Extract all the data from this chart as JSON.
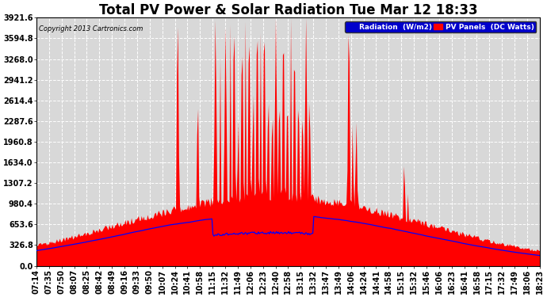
{
  "title": "Total PV Power & Solar Radiation Tue Mar 12 18:33",
  "copyright": "Copyright 2013 Cartronics.com",
  "legend_radiation": "Radiation  (W/m2)",
  "legend_pv": "PV Panels  (DC Watts)",
  "ymin": 0.0,
  "ymax": 3921.6,
  "yticks": [
    0.0,
    326.8,
    653.6,
    980.4,
    1307.2,
    1634.0,
    1960.8,
    2287.6,
    2614.4,
    2941.2,
    3268.0,
    3594.8,
    3921.6
  ],
  "bg_color": "#ffffff",
  "plot_bg_color": "#d8d8d8",
  "grid_color": "#ffffff",
  "pv_color": "#ff0000",
  "radiation_color": "#0000ff",
  "title_fontsize": 12,
  "tick_fontsize": 7,
  "xtick_labels": [
    "07:14",
    "07:35",
    "07:50",
    "08:07",
    "08:25",
    "08:42",
    "08:49",
    "09:16",
    "09:33",
    "09:50",
    "10:07",
    "10:24",
    "10:41",
    "10:58",
    "11:15",
    "11:32",
    "11:49",
    "12:06",
    "12:23",
    "12:40",
    "12:58",
    "13:15",
    "13:32",
    "13:47",
    "13:49",
    "14:06",
    "14:24",
    "14:41",
    "14:58",
    "15:15",
    "15:32",
    "15:46",
    "16:06",
    "16:23",
    "16:41",
    "16:58",
    "17:15",
    "17:32",
    "17:49",
    "18:06",
    "18:23"
  ],
  "num_points": 500,
  "radiation_max": 800,
  "pv_base_max": 1100,
  "pv_spike_max": 3921.6
}
